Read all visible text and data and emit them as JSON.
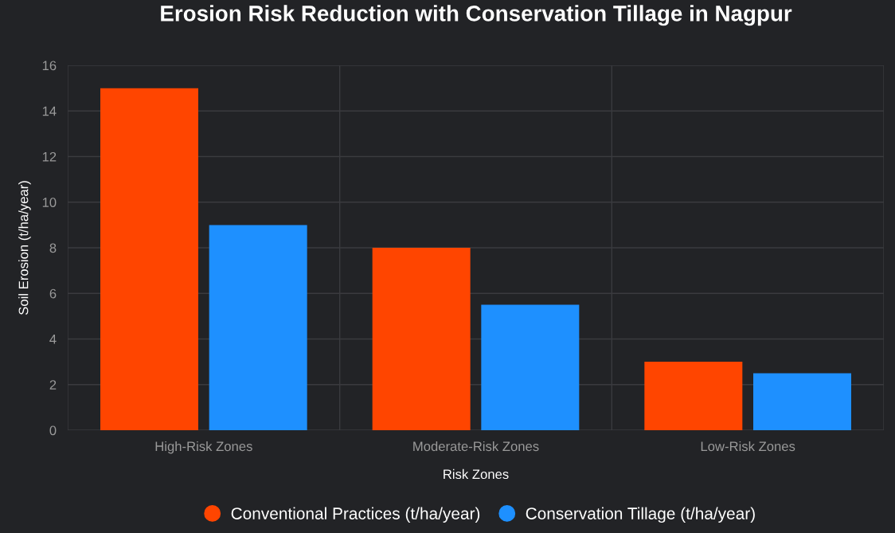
{
  "chart_data": {
    "type": "bar",
    "title": "Erosion Risk Reduction with Conservation Tillage in Nagpur",
    "xlabel": "Risk Zones",
    "ylabel": "Soil Erosion (t/ha/year)",
    "categories": [
      "High-Risk Zones",
      "Moderate-Risk Zones",
      "Low-Risk Zones"
    ],
    "series": [
      {
        "name": "Conventional Practices (t/ha/year)",
        "color": "#ff4500",
        "values": [
          15,
          8,
          3
        ]
      },
      {
        "name": "Conservation Tillage (t/ha/year)",
        "color": "#1e90ff",
        "values": [
          9,
          5.5,
          2.5
        ]
      }
    ],
    "ylim": [
      0,
      16
    ],
    "yticks": [
      0,
      2,
      4,
      6,
      8,
      10,
      12,
      14,
      16
    ],
    "grid": true,
    "legend": "bottom"
  }
}
